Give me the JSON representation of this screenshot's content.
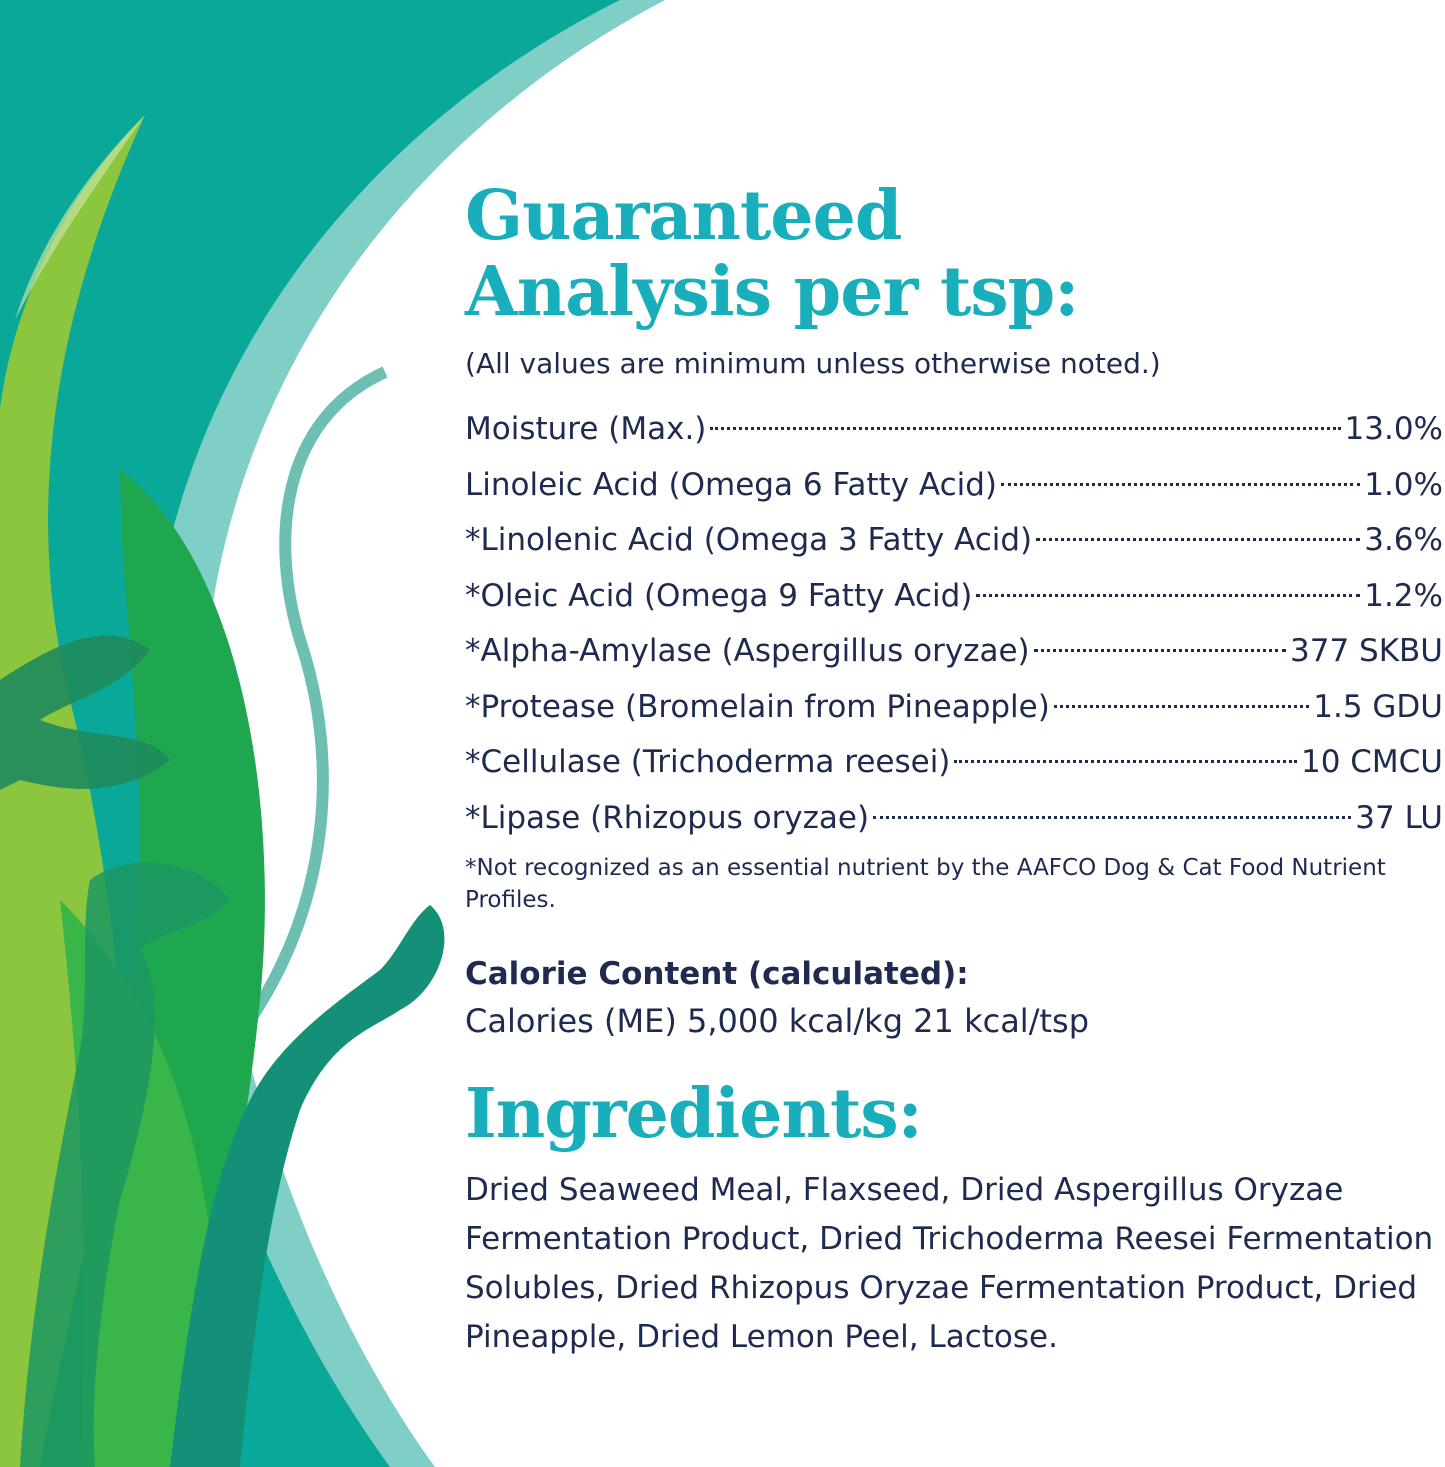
{
  "colors": {
    "background": "#0aa898",
    "band": "#7fcfc6",
    "heading": "#19aebb",
    "text": "#1e2a50"
  },
  "title_line1": "Guaranteed",
  "title_line2": "Analysis per tsp:",
  "subtitle": "(All values are minimum unless otherwise noted.)",
  "analysis": [
    {
      "label": "Moisture (Max.)",
      "value": "13.0%"
    },
    {
      "label": "Linoleic Acid (Omega 6 Fatty Acid)",
      "value": "1.0%"
    },
    {
      "label": "*Linolenic Acid (Omega 3 Fatty Acid)",
      "value": "3.6%"
    },
    {
      "label": "*Oleic Acid (Omega 9 Fatty Acid)",
      "value": "1.2%"
    },
    {
      "label": "*Alpha-Amylase (Aspergillus oryzae)",
      "value": "377 SKBU"
    },
    {
      "label": "*Protease (Bromelain from Pineapple)",
      "value": "1.5 GDU"
    },
    {
      "label": "*Cellulase (Trichoderma reesei)",
      "value": "10 CMCU"
    },
    {
      "label": "*Lipase (Rhizopus oryzae)",
      "value": "37 LU"
    }
  ],
  "footnote": "*Not recognized as an essential nutrient by the AAFCO Dog & Cat Food Nutrient Profiles.",
  "calorie_heading": "Calorie Content (calculated):",
  "calorie_text": "Calories (ME) 5,000 kcal/kg 21 kcal/tsp",
  "ingredients_heading": "Ingredients:",
  "ingredients_text": "Dried Seaweed Meal, Flaxseed, Dried Aspergillus Oryzae Fermentation Product, Dried Trichoderma Reesei Fermentation Solubles, Dried Rhizopus Oryzae Fermentation Product, Dried Pineapple, Dried Lemon Peel, Lactose."
}
